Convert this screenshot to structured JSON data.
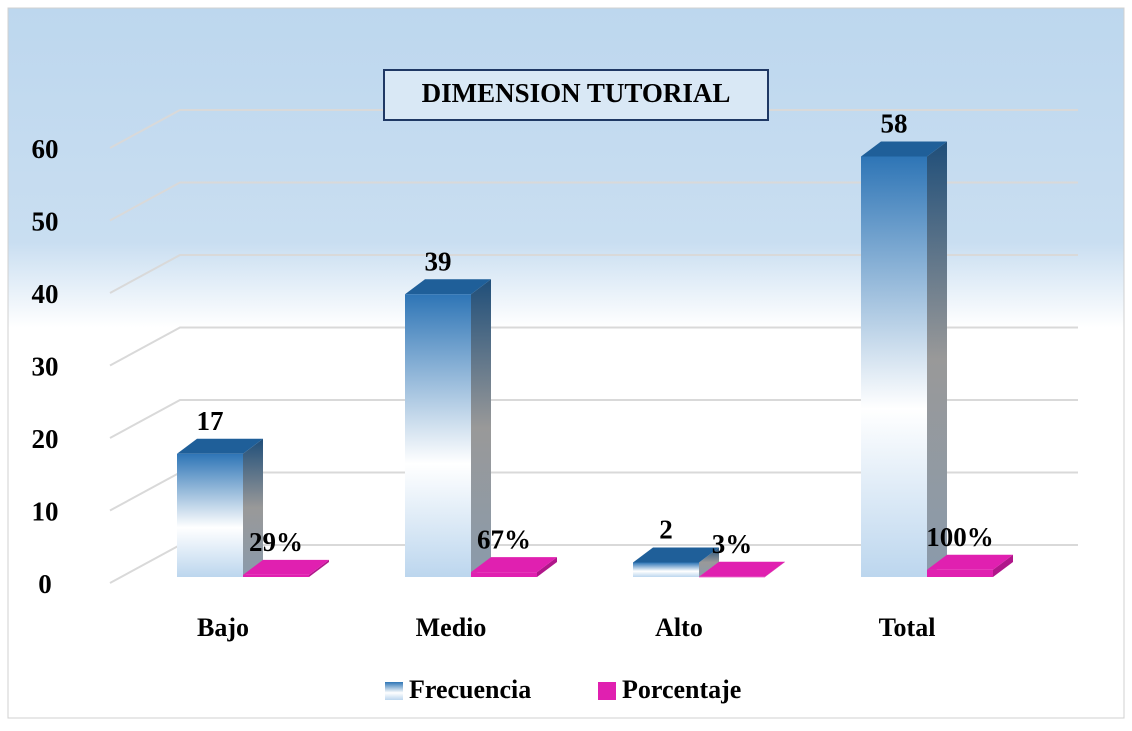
{
  "chart_data": {
    "type": "bar3d",
    "title": "DIMENSION TUTORIAL",
    "categories": [
      "Bajo",
      "Medio",
      "Alto",
      "Total"
    ],
    "series": [
      {
        "name": "Frecuencia",
        "color": "#2e75b6",
        "values": [
          17,
          39,
          2,
          58
        ]
      },
      {
        "name": "Porcentaje",
        "color": "#e020b0",
        "values": [
          0.29,
          0.67,
          0.03,
          1
        ],
        "value_labels": [
          "29%",
          "67%",
          "3%",
          "100%"
        ]
      }
    ],
    "ylim": [
      0,
      60
    ],
    "yticks": [
      0,
      10,
      20,
      30,
      40,
      50,
      60
    ],
    "grid": true,
    "legend": "bottom"
  }
}
